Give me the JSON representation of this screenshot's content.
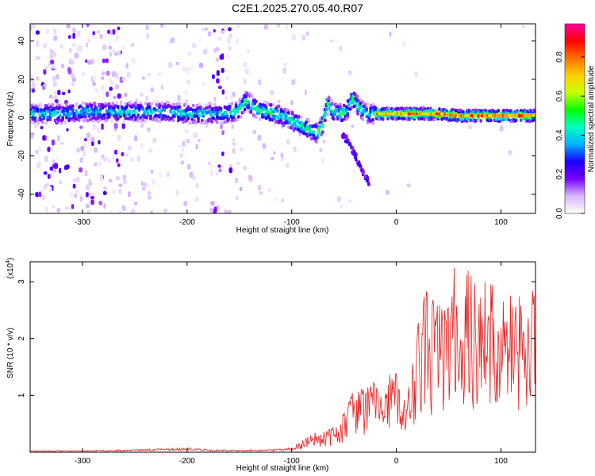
{
  "title": "C2E1.2025.270.05.40.R07",
  "chart_data": [
    {
      "type": "heatmap",
      "name": "spectrogram",
      "xlabel": "Height of straight line (km)",
      "ylabel": "Frequency (Hz)",
      "xlim": [
        -350,
        133
      ],
      "ylim": [
        -50,
        49
      ],
      "xticks": [
        -300,
        -200,
        -100,
        0,
        100
      ],
      "yticks": [
        -40,
        -20,
        0,
        20,
        40
      ],
      "colorbar": {
        "label": "Normalized spectral amplitude",
        "range": [
          0,
          0.97
        ],
        "ticks": [
          "0.0",
          "0.2",
          "0.4",
          "0.6",
          "0.8"
        ],
        "stops": [
          "#ffffff",
          "#d8b8ff",
          "#7a00ff",
          "#1a00ff",
          "#00b0ff",
          "#00ffc0",
          "#00ff00",
          "#c8ff00",
          "#ffd000",
          "#ff7000",
          "#ff0000",
          "#ff00a0"
        ]
      },
      "ridge": [
        [
          -345,
          2
        ],
        [
          -320,
          2
        ],
        [
          -300,
          3
        ],
        [
          -280,
          3
        ],
        [
          -260,
          3
        ],
        [
          -240,
          3
        ],
        [
          -220,
          3
        ],
        [
          -200,
          2
        ],
        [
          -180,
          2
        ],
        [
          -160,
          2
        ],
        [
          -150,
          4
        ],
        [
          -143,
          9
        ],
        [
          -135,
          5
        ],
        [
          -125,
          3
        ],
        [
          -115,
          2
        ],
        [
          -105,
          0
        ],
        [
          -95,
          -3
        ],
        [
          -88,
          -5
        ],
        [
          -80,
          -7
        ],
        [
          -75,
          -8
        ],
        [
          -70,
          -3
        ],
        [
          -66,
          7
        ],
        [
          -60,
          3
        ],
        [
          -55,
          2
        ],
        [
          -48,
          3
        ],
        [
          -42,
          10
        ],
        [
          -35,
          5
        ],
        [
          -28,
          2
        ],
        [
          -15,
          2
        ],
        [
          0,
          2
        ],
        [
          20,
          2
        ],
        [
          40,
          2
        ],
        [
          60,
          1
        ],
        [
          80,
          1
        ],
        [
          100,
          1
        ],
        [
          120,
          1
        ],
        [
          133,
          1
        ]
      ],
      "branch": [
        [
          -52,
          -8
        ],
        [
          -45,
          -14
        ],
        [
          -38,
          -21
        ],
        [
          -32,
          -28
        ],
        [
          -26,
          -34
        ]
      ]
    },
    {
      "type": "line",
      "name": "snr",
      "xlabel": "Height of straight line (km)",
      "ylabel": "SNR (10 * v/v)",
      "multiplier": "(x10",
      "multiplier_exp": "4",
      "xlim": [
        -350,
        133
      ],
      "ylim": [
        0,
        3.35
      ],
      "xticks": [
        -300,
        -200,
        -100,
        0,
        100
      ],
      "yticks": [
        1,
        2,
        3
      ],
      "color": "#e82020",
      "envelope": [
        [
          -350,
          0.03
        ],
        [
          -300,
          0.03
        ],
        [
          -250,
          0.05
        ],
        [
          -220,
          0.07
        ],
        [
          -200,
          0.08
        ],
        [
          -180,
          0.05
        ],
        [
          -150,
          0.04
        ],
        [
          -120,
          0.05
        ],
        [
          -100,
          0.08
        ],
        [
          -90,
          0.22
        ],
        [
          -80,
          0.34
        ],
        [
          -70,
          0.38
        ],
        [
          -60,
          0.45
        ],
        [
          -52,
          0.62
        ],
        [
          -45,
          1.05
        ],
        [
          -40,
          1.25
        ],
        [
          -35,
          1.15
        ],
        [
          -25,
          1.25
        ],
        [
          -15,
          1.3
        ],
        [
          -10,
          1.05
        ],
        [
          -5,
          1.5
        ],
        [
          0,
          1.45
        ],
        [
          5,
          1.0
        ],
        [
          10,
          0.9
        ],
        [
          15,
          1.6
        ],
        [
          22,
          2.3
        ],
        [
          28,
          2.7
        ],
        [
          40,
          2.5
        ],
        [
          50,
          2.8
        ],
        [
          60,
          3.1
        ],
        [
          70,
          2.9
        ],
        [
          80,
          2.9
        ],
        [
          95,
          2.7
        ],
        [
          110,
          2.6
        ],
        [
          120,
          2.5
        ],
        [
          133,
          2.7
        ]
      ]
    }
  ]
}
